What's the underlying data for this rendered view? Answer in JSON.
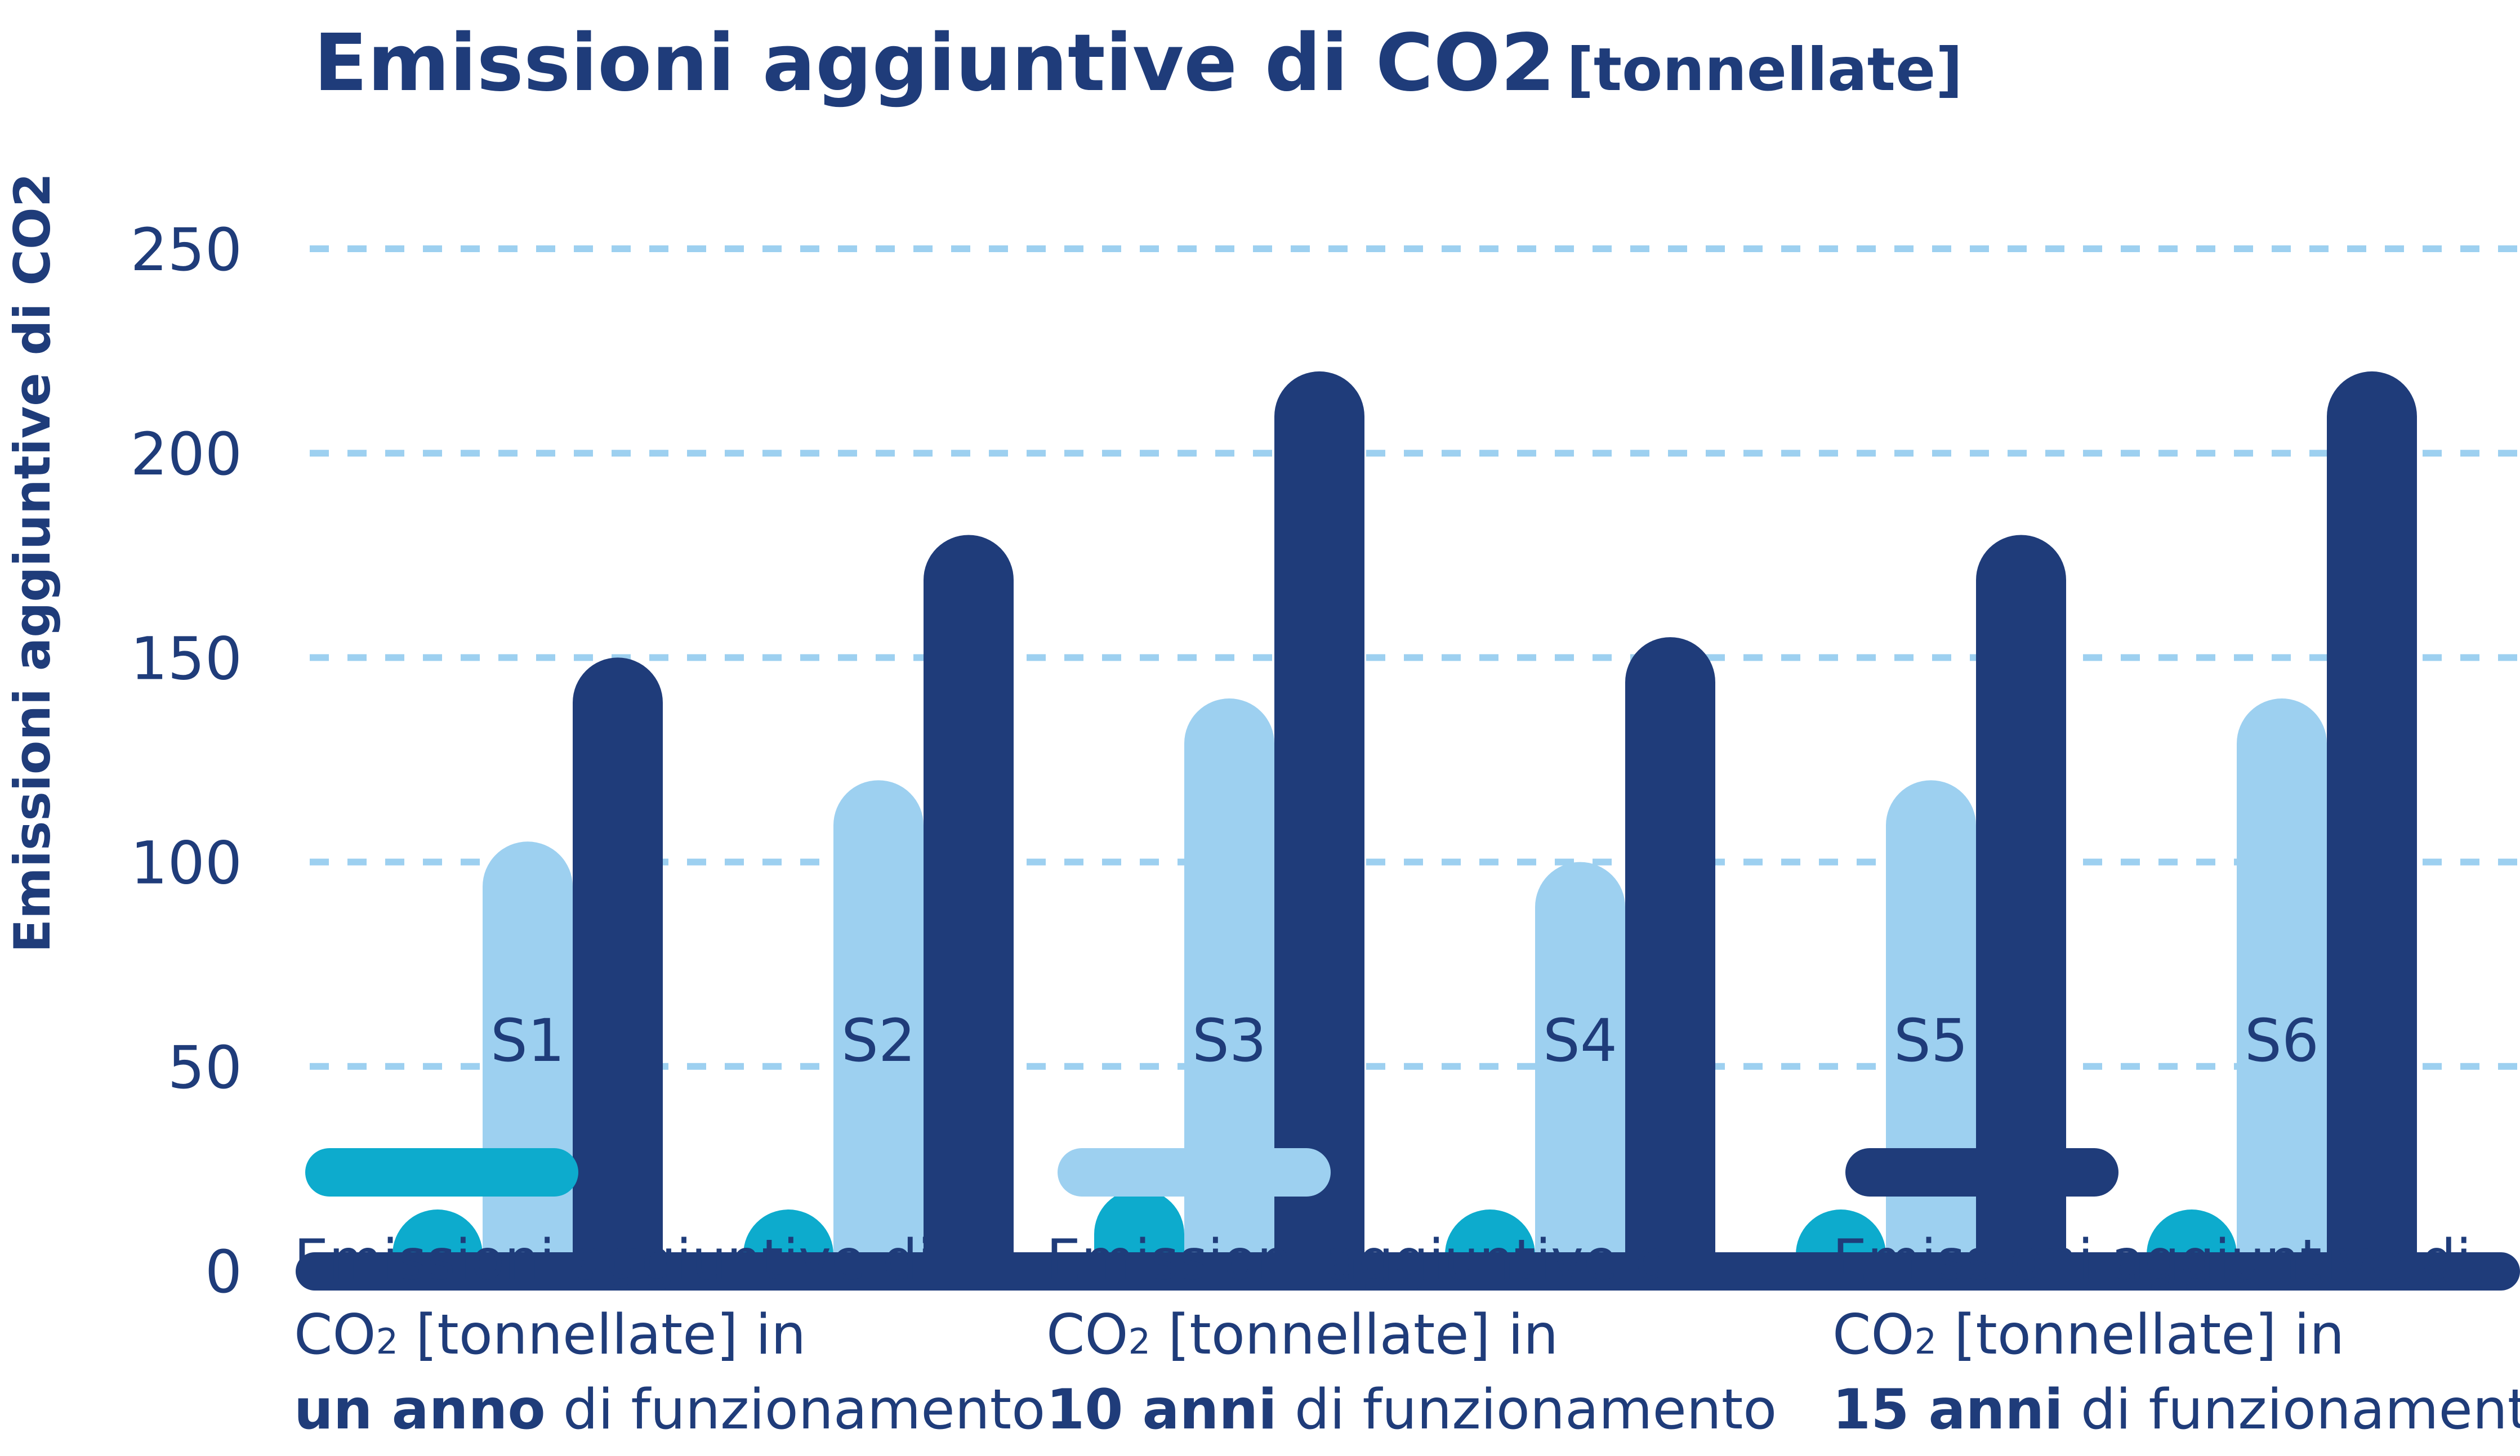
{
  "chart_data": {
    "type": "bar",
    "title": "Emissioni aggiuntive di CO2",
    "title_unit": "[tonnellate]",
    "ylabel": "Emissioni aggiuntive di CO2",
    "xlabel": "",
    "ylim": [
      0,
      250
    ],
    "yticks": [
      "0",
      "50",
      "100",
      "150",
      "200",
      "250"
    ],
    "grid": true,
    "legend_position": "bottom",
    "categories": [
      "S1",
      "S2",
      "S3",
      "S4",
      "S5",
      "S6"
    ],
    "series": [
      {
        "name": "un anno",
        "color": "#0dabcd",
        "values": [
          15,
          15,
          20,
          15,
          15,
          15
        ],
        "legend": {
          "line1": "Emissioni aggiuntive di",
          "co": "CO",
          "sub": "2",
          "line2rest": " [tonnellate] in",
          "bold": "un anno",
          "rest": " di funzionamento"
        }
      },
      {
        "name": "10 anni",
        "color": "#9dd0f0",
        "values": [
          105,
          120,
          140,
          100,
          120,
          140
        ],
        "legend": {
          "line1": "Emissioni aggiuntive di",
          "co": "CO",
          "sub": "2",
          "line2rest": " [tonnellate] in",
          "bold": "10 anni",
          "rest": " di funzionamento"
        }
      },
      {
        "name": "15 anni",
        "color": "#1f3c7a",
        "values": [
          150,
          180,
          220,
          155,
          180,
          220
        ],
        "legend": {
          "line1": "Emissioni aggiuntive di",
          "co": "CO",
          "sub": "2",
          "line2rest": " [tonnellate] in",
          "bold": "15 anni",
          "rest": " di funzionamento"
        }
      }
    ]
  }
}
